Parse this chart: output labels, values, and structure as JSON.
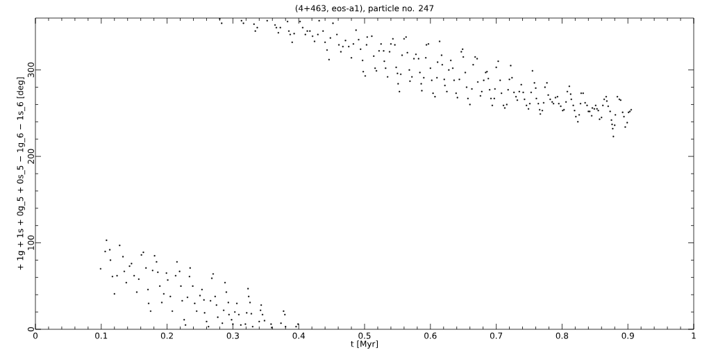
{
  "chart_data": {
    "type": "scatter",
    "title": "(4+463, eos-a1), particle no. 247",
    "xlabel": "t [Myr]",
    "ylabel": "+ 1g + 1s + 0g_5 + 0s_5 − 1g_6 − 1s_6 [deg]",
    "xlim": [
      0,
      1
    ],
    "ylim": [
      0,
      360
    ],
    "xticks": [
      0,
      0.1,
      0.2,
      0.3,
      0.4,
      0.5,
      0.6,
      0.7,
      0.8,
      0.9,
      1
    ],
    "yticks": [
      0,
      100,
      200,
      300
    ],
    "series": [
      {
        "color": "#000000",
        "x": [
          0.099,
          0.108,
          0.106,
          0.113,
          0.114,
          0.117,
          0.12,
          0.124,
          0.128,
          0.133,
          0.135,
          0.138,
          0.143,
          0.146,
          0.15,
          0.154,
          0.157,
          0.161,
          0.164,
          0.168,
          0.171,
          0.172,
          0.175,
          0.178,
          0.181,
          0.184,
          0.186,
          0.189,
          0.192,
          0.195,
          0.199,
          0.201,
          0.205,
          0.208,
          0.213,
          0.215,
          0.219,
          0.221,
          0.223,
          0.226,
          0.228,
          0.231,
          0.234,
          0.235,
          0.239,
          0.242,
          0.245,
          0.25,
          0.253,
          0.256,
          0.257,
          0.26,
          0.263,
          0.266,
          0.268,
          0.27,
          0.273,
          0.275,
          0.277,
          0.284,
          0.286,
          0.288,
          0.29,
          0.293,
          0.294,
          0.298,
          0.3,
          0.303,
          0.306,
          0.309,
          0.312,
          0.319,
          0.321,
          0.323,
          0.324,
          0.326,
          0.328,
          0.33,
          0.34,
          0.342,
          0.343,
          0.345,
          0.348,
          0.358,
          0.359,
          0.373,
          0.377,
          0.379,
          0.38,
          0.396,
          0.399,
          0.28,
          0.283,
          0.313,
          0.316,
          0.332,
          0.334,
          0.337,
          0.352,
          0.364,
          0.366,
          0.369,
          0.372,
          0.383,
          0.385,
          0.387,
          0.39,
          0.393,
          0.402,
          0.406,
          0.41,
          0.413,
          0.417,
          0.421,
          0.424,
          0.429,
          0.431,
          0.437,
          0.44,
          0.443,
          0.446,
          0.448,
          0.452,
          0.458,
          0.461,
          0.464,
          0.467,
          0.471,
          0.476,
          0.48,
          0.483,
          0.487,
          0.491,
          0.494,
          0.497,
          0.498,
          0.501,
          0.503,
          0.504,
          0.511,
          0.514,
          0.516,
          0.518,
          0.522,
          0.525,
          0.529,
          0.53,
          0.532,
          0.535,
          0.538,
          0.54,
          0.543,
          0.546,
          0.548,
          0.55,
          0.551,
          0.553,
          0.555,
          0.557,
          0.56,
          0.563,
          0.565,
          0.568,
          0.569,
          0.572,
          0.575,
          0.578,
          0.582,
          0.584,
          0.586,
          0.587,
          0.59,
          0.593,
          0.594,
          0.597,
          0.6,
          0.602,
          0.604,
          0.607,
          0.61,
          0.611,
          0.614,
          0.617,
          0.618,
          0.621,
          0.622,
          0.625,
          0.628,
          0.631,
          0.634,
          0.636,
          0.639,
          0.641,
          0.644,
          0.647,
          0.649,
          0.65,
          0.653,
          0.655,
          0.657,
          0.66,
          0.663,
          0.665,
          0.668,
          0.671,
          0.672,
          0.676,
          0.678,
          0.681,
          0.684,
          0.686,
          0.688,
          0.69,
          0.692,
          0.694,
          0.697,
          0.698,
          0.7,
          0.703,
          0.706,
          0.708,
          0.711,
          0.713,
          0.716,
          0.718,
          0.72,
          0.722,
          0.724,
          0.727,
          0.73,
          0.732,
          0.735,
          0.738,
          0.741,
          0.743,
          0.746,
          0.749,
          0.751,
          0.753,
          0.755,
          0.758,
          0.76,
          0.761,
          0.764,
          0.766,
          0.767,
          0.77,
          0.772,
          0.774,
          0.777,
          0.779,
          0.782,
          0.785,
          0.787,
          0.79,
          0.793,
          0.795,
          0.798,
          0.801,
          0.803,
          0.806,
          0.808,
          0.811,
          0.813,
          0.814,
          0.817,
          0.819,
          0.821,
          0.824,
          0.826,
          0.828,
          0.829,
          0.832,
          0.835,
          0.838,
          0.84,
          0.842,
          0.845,
          0.846,
          0.849,
          0.851,
          0.853,
          0.855,
          0.857,
          0.86,
          0.862,
          0.864,
          0.867,
          0.868,
          0.87,
          0.873,
          0.875,
          0.876,
          0.877,
          0.878,
          0.88,
          0.881,
          0.884,
          0.887,
          0.889,
          0.892,
          0.894,
          0.896,
          0.899,
          0.901,
          0.903,
          0.905
        ],
        "values": [
          70,
          103,
          90,
          92,
          80,
          61,
          41,
          62,
          97,
          84,
          67,
          54,
          73,
          76,
          62,
          43,
          58,
          86,
          89,
          71,
          46,
          30,
          21,
          68,
          85,
          78,
          66,
          50,
          31,
          41,
          65,
          57,
          38,
          21,
          62,
          78,
          67,
          50,
          33,
          11,
          5,
          37,
          61,
          71,
          50,
          30,
          21,
          39,
          46,
          34,
          19,
          9,
          3,
          33,
          59,
          64,
          38,
          28,
          14,
          7,
          22,
          54,
          43,
          31,
          17,
          11,
          6,
          20,
          30,
          17,
          5,
          6,
          19,
          47,
          38,
          31,
          18,
          3,
          9,
          22,
          28,
          17,
          10,
          6,
          2,
          7,
          21,
          17,
          3,
          3,
          6,
          359,
          354,
          357,
          354,
          353,
          345,
          349,
          357,
          352,
          349,
          343,
          349,
          356,
          345,
          341,
          332,
          342,
          356,
          349,
          341,
          345,
          345,
          339,
          333,
          341,
          357,
          345,
          332,
          323,
          312,
          337,
          354,
          341,
          329,
          321,
          327,
          334,
          327,
          314,
          330,
          346,
          335,
          324,
          311,
          298,
          293,
          329,
          338,
          339,
          316,
          302,
          299,
          322,
          330,
          322,
          310,
          302,
          292,
          321,
          330,
          336,
          329,
          303,
          296,
          284,
          275,
          295,
          317,
          336,
          338,
          320,
          300,
          287,
          292,
          313,
          318,
          313,
          297,
          284,
          276,
          291,
          314,
          329,
          330,
          302,
          288,
          273,
          269,
          291,
          309,
          333,
          317,
          306,
          289,
          282,
          275,
          300,
          311,
          302,
          288,
          273,
          268,
          289,
          321,
          324,
          315,
          297,
          280,
          267,
          260,
          278,
          306,
          315,
          313,
          286,
          270,
          275,
          288,
          297,
          298,
          290,
          277,
          267,
          259,
          267,
          278,
          303,
          310,
          288,
          273,
          259,
          256,
          260,
          277,
          289,
          305,
          291,
          274,
          269,
          265,
          275,
          283,
          274,
          266,
          259,
          255,
          261,
          274,
          299,
          285,
          279,
          267,
          261,
          254,
          249,
          253,
          262,
          280,
          285,
          271,
          266,
          263,
          261,
          268,
          269,
          261,
          258,
          253,
          254,
          263,
          275,
          281,
          272,
          266,
          259,
          253,
          246,
          240,
          248,
          261,
          273,
          273,
          262,
          259,
          252,
          252,
          247,
          256,
          255,
          259,
          255,
          253,
          243,
          245,
          259,
          266,
          269,
          264,
          258,
          252,
          242,
          237,
          232,
          223,
          236,
          248,
          269,
          266,
          265,
          251,
          246,
          234,
          239,
          251,
          252,
          254
        ]
      }
    ]
  }
}
